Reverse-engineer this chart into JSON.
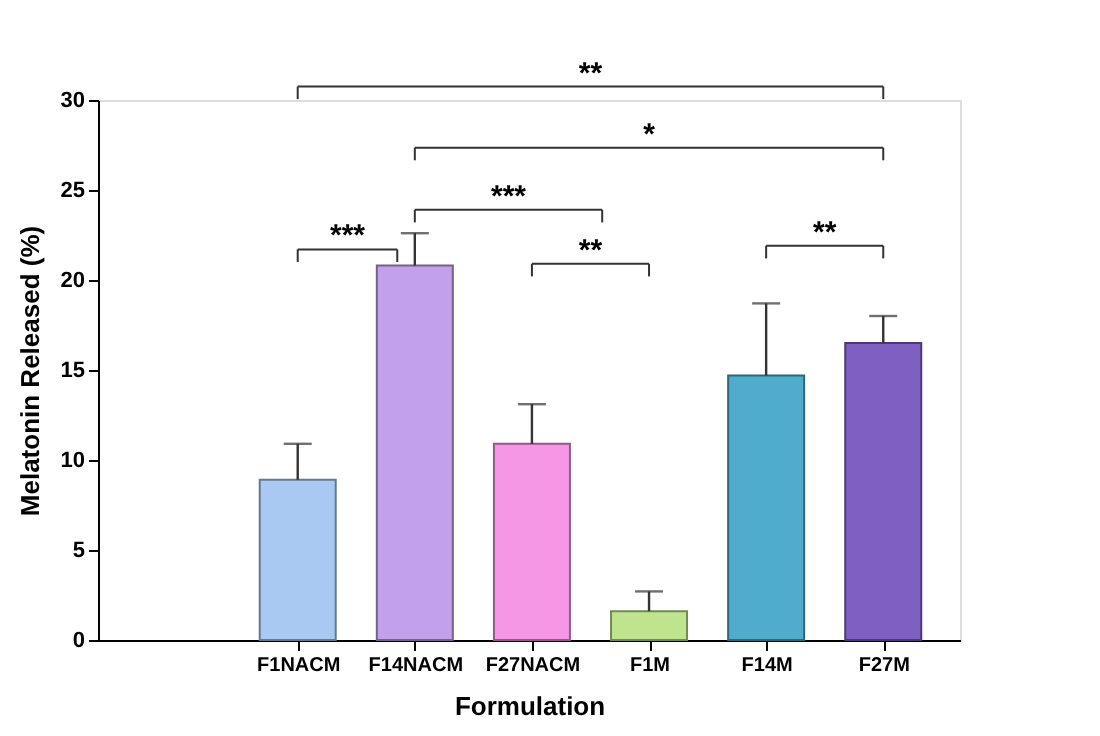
{
  "chart_data": {
    "type": "bar",
    "xlabel": "Formulation",
    "ylabel": "Melatonin Released (%)",
    "categories": [
      "F1NACM",
      "F14NACM",
      "F27NACM",
      "F1M",
      "F14M",
      "F27M"
    ],
    "values": [
      8.9,
      20.8,
      10.9,
      1.6,
      14.7,
      16.5
    ],
    "colors": [
      "#a9c8f2",
      "#c3a0ea",
      "#f597e4",
      "#bfe48e",
      "#4fadcb",
      "#7f5fc2"
    ],
    "errors": [
      [
        8.9,
        10.9
      ],
      [
        20.8,
        22.6
      ],
      [
        10.9,
        13.1
      ],
      [
        1.6,
        2.7
      ],
      [
        14.7,
        18.7
      ],
      [
        16.5,
        18.0
      ]
    ],
    "ylim": [
      0,
      30
    ],
    "yticks": [
      0,
      5,
      10,
      15,
      20,
      25,
      30
    ],
    "grid": false,
    "annotations": [
      "**",
      "*",
      "***",
      "***",
      "**",
      "**"
    ]
  }
}
